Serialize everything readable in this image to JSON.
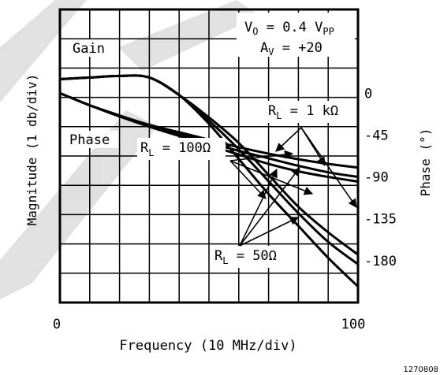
{
  "chart_data": {
    "type": "line",
    "xlabel": "Frequency (10 MHz/div)",
    "ylabel_left": "Magnitude (1 db/div)",
    "ylabel_right": "Phase (°)",
    "x_ticks": [
      "0",
      "100"
    ],
    "xlim": [
      0,
      100
    ],
    "phase_ticks": [
      "0",
      "-45",
      "-90",
      "-135",
      "-180"
    ],
    "phase_tick_values": [
      0,
      -45,
      -90,
      -135,
      -180
    ],
    "phase_ylim": [
      -225,
      90
    ],
    "gain_ylim_div": [
      0,
      9
    ],
    "grid": true,
    "conditions": [
      "V_O = 0.4 V_PP",
      "A_V = +20"
    ],
    "annotations": {
      "gain": "Gain",
      "phase": "Phase",
      "rl_1k": "R_L = 1 kΩ",
      "rl_100": "R_L = 100Ω",
      "rl_50": "R_L = 50Ω"
    },
    "series": [
      {
        "group": "gain",
        "load": "1 kΩ",
        "x": [
          0,
          10,
          20,
          30,
          40,
          50,
          60,
          70,
          80,
          90,
          100
        ],
        "y": [
          7.0,
          7.05,
          7.1,
          7.05,
          6.5,
          5.8,
          5.0,
          4.0,
          3.0,
          2.2,
          1.5
        ]
      },
      {
        "group": "gain",
        "load": "100Ω",
        "x": [
          0,
          10,
          20,
          30,
          40,
          50,
          60,
          70,
          80,
          90,
          100
        ],
        "y": [
          7.0,
          7.05,
          7.1,
          7.05,
          6.5,
          5.7,
          4.8,
          3.8,
          2.8,
          1.9,
          1.2
        ]
      },
      {
        "group": "gain",
        "load": "50Ω",
        "x": [
          0,
          10,
          20,
          30,
          40,
          50,
          60,
          70,
          80,
          90,
          100
        ],
        "y": [
          7.0,
          7.05,
          7.1,
          7.05,
          6.5,
          5.6,
          4.5,
          3.4,
          2.4,
          1.4,
          0.5
        ]
      },
      {
        "group": "phase",
        "load": "1 kΩ",
        "x": [
          0,
          10,
          20,
          30,
          40,
          50,
          60,
          70,
          80,
          90,
          100
        ],
        "y": [
          0,
          -13,
          -24,
          -34,
          -42,
          -50,
          -58,
          -65,
          -71,
          -76,
          -80
        ]
      },
      {
        "group": "phase",
        "load": "100Ω",
        "x": [
          0,
          10,
          20,
          30,
          40,
          50,
          60,
          70,
          80,
          90,
          100
        ],
        "y": [
          0,
          -13,
          -24,
          -35,
          -44,
          -53,
          -62,
          -70,
          -78,
          -85,
          -90
        ]
      },
      {
        "group": "phase",
        "load": "50Ω",
        "x": [
          0,
          10,
          20,
          30,
          40,
          50,
          60,
          70,
          80,
          90,
          100
        ],
        "y": [
          0,
          -13,
          -25,
          -36,
          -46,
          -56,
          -66,
          -76,
          -84,
          -90,
          -95
        ]
      }
    ]
  },
  "footer": {
    "figure_id": "1270808"
  },
  "colors": {
    "line": "#000000",
    "background": "#ffffff",
    "watermark": "#c8c8c8"
  }
}
